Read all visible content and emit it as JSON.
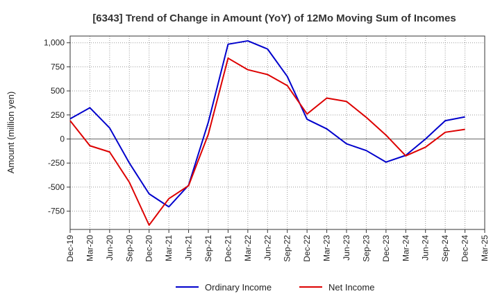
{
  "chart_data": {
    "type": "line",
    "title": "[6343]  Trend of Change in Amount (YoY) of 12Mo Moving Sum of Incomes",
    "xlabel": "",
    "ylabel": "Amount (million yen)",
    "categories": [
      "Dec-19",
      "Mar-20",
      "Jun-20",
      "Sep-20",
      "Dec-20",
      "Mar-21",
      "Jun-21",
      "Sep-21",
      "Dec-21",
      "Mar-22",
      "Jun-22",
      "Sep-22",
      "Dec-22",
      "Mar-23",
      "Jun-23",
      "Sep-23",
      "Dec-23",
      "Mar-24",
      "Jun-24",
      "Sep-24",
      "Dec-24",
      "Mar-25"
    ],
    "yticks": [
      1000,
      750,
      500,
      250,
      0,
      -250,
      -500,
      -750
    ],
    "ytick_labels": [
      "1,000",
      "750",
      "500",
      "250",
      "0",
      "-250",
      "-500",
      "-750"
    ],
    "ylim": [
      -940,
      1070
    ],
    "grid": true,
    "legend": "bottom",
    "series": [
      {
        "name": "Ordinary Income",
        "color": "#0000cc",
        "values": [
          210,
          325,
          115,
          -250,
          -570,
          -705,
          -480,
          175,
          985,
          1020,
          935,
          650,
          205,
          105,
          -50,
          -120,
          -240,
          -170,
          0,
          190,
          230,
          null
        ]
      },
      {
        "name": "Net Income",
        "color": "#dd0000",
        "values": [
          190,
          -70,
          -135,
          -450,
          -895,
          -620,
          -485,
          50,
          840,
          720,
          670,
          555,
          260,
          425,
          390,
          225,
          40,
          -175,
          -85,
          70,
          100,
          null
        ]
      }
    ]
  }
}
